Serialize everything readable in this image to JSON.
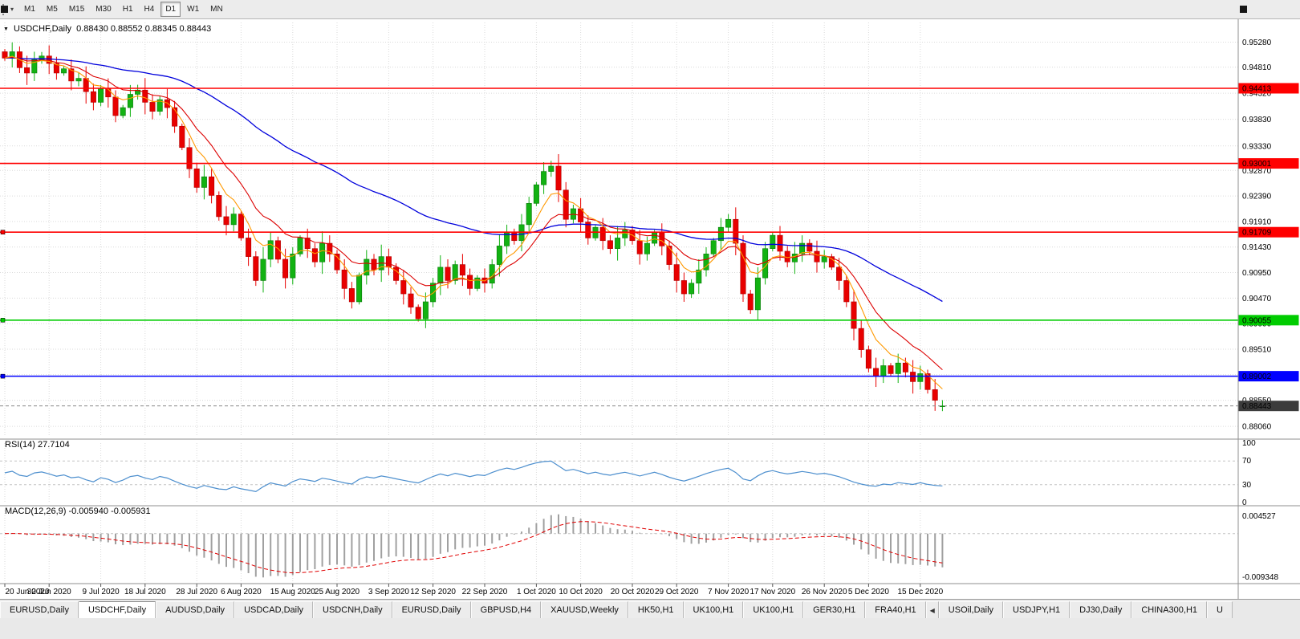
{
  "toolbar": {
    "dropdown_icon": "▾",
    "timeframes": [
      {
        "label": "M1",
        "active": false
      },
      {
        "label": "M5",
        "active": false
      },
      {
        "label": "M15",
        "active": false
      },
      {
        "label": "M30",
        "active": false
      },
      {
        "label": "H1",
        "active": false
      },
      {
        "label": "H4",
        "active": false
      },
      {
        "label": "D1",
        "active": true
      },
      {
        "label": "W1",
        "active": false
      },
      {
        "label": "MN",
        "active": false
      }
    ]
  },
  "chart": {
    "collapse_icon": "▼",
    "symbol_title": "USDCHF,Daily",
    "ohlc_text": "0.88430 0.88552 0.88345 0.88443"
  },
  "rsi_panel": {
    "label": "RSI(14) 27.7104",
    "scale": [
      {
        "label": "100",
        "value": 100
      },
      {
        "label": "70",
        "value": 70
      },
      {
        "label": "30",
        "value": 30
      },
      {
        "label": "0",
        "value": 0
      }
    ]
  },
  "macd_panel": {
    "label": "MACD(12,26,9) -0.005940 -0.005931",
    "scale_top": "0.004527",
    "scale_bottom": "-0.009348"
  },
  "chart_data": {
    "type": "candlestick",
    "symbol": "USDCHF",
    "period": "Daily",
    "last_ohlc": {
      "open": 0.8843,
      "high": 0.88552,
      "low": 0.88345,
      "close": 0.88443
    },
    "current_price": {
      "value": 0.88443,
      "label": "0.88443"
    },
    "price_axis": {
      "min": 0.8788,
      "max": 0.9565,
      "labels": [
        "0.95280",
        "0.94810",
        "0.94320",
        "0.93830",
        "0.93330",
        "0.92870",
        "0.92390",
        "0.91910",
        "0.91430",
        "0.90950",
        "0.90470",
        "0.89990",
        "0.89510",
        "0.89030",
        "0.88550",
        "0.88060"
      ]
    },
    "hlines": [
      {
        "price": 0.94413,
        "label": "0.94413",
        "color": "#ff0000",
        "handle": false
      },
      {
        "price": 0.93001,
        "label": "0.93001",
        "color": "#ff0000",
        "handle": false
      },
      {
        "price": 0.91709,
        "label": "0.91709",
        "color": "#ff0000",
        "handle": true
      },
      {
        "price": 0.90055,
        "label": "0.90055",
        "color": "#00cc00",
        "handle": true
      },
      {
        "price": 0.89002,
        "label": "0.89002",
        "color": "#0000ff",
        "handle": true
      }
    ],
    "moving_averages": [
      {
        "period": 50,
        "color": "#0000dc"
      },
      {
        "period": 12,
        "color": "#dc0000"
      },
      {
        "period": 6,
        "color": "#ff9900"
      }
    ],
    "rsi": {
      "period": 14,
      "value": 27.7104
    },
    "macd": {
      "fast": 12,
      "slow": 26,
      "signal": 9,
      "value": -0.00594,
      "signal_value": -0.005931
    },
    "closes": [
      0.9498,
      0.951,
      0.948,
      0.947,
      0.9495,
      0.9502,
      0.9488,
      0.947,
      0.9478,
      0.9455,
      0.946,
      0.9435,
      0.9415,
      0.944,
      0.9425,
      0.939,
      0.9405,
      0.943,
      0.9438,
      0.9415,
      0.9398,
      0.942,
      0.9405,
      0.937,
      0.933,
      0.929,
      0.9255,
      0.9275,
      0.924,
      0.92,
      0.9185,
      0.9205,
      0.916,
      0.9125,
      0.908,
      0.912,
      0.9155,
      0.912,
      0.9085,
      0.913,
      0.916,
      0.914,
      0.9115,
      0.915,
      0.913,
      0.91,
      0.9065,
      0.904,
      0.909,
      0.912,
      0.91,
      0.9125,
      0.9105,
      0.908,
      0.9055,
      0.903,
      0.9008,
      0.904,
      0.9075,
      0.9105,
      0.908,
      0.911,
      0.909,
      0.9065,
      0.9085,
      0.9075,
      0.911,
      0.9145,
      0.917,
      0.9155,
      0.9185,
      0.9225,
      0.926,
      0.9285,
      0.9295,
      0.925,
      0.9195,
      0.9215,
      0.919,
      0.916,
      0.918,
      0.9155,
      0.914,
      0.916,
      0.9175,
      0.9155,
      0.913,
      0.915,
      0.917,
      0.9145,
      0.911,
      0.908,
      0.9055,
      0.9075,
      0.91,
      0.913,
      0.9155,
      0.918,
      0.9195,
      0.915,
      0.9055,
      0.9025,
      0.9085,
      0.914,
      0.9165,
      0.9135,
      0.9115,
      0.913,
      0.915,
      0.9135,
      0.9115,
      0.9125,
      0.9105,
      0.908,
      0.904,
      0.899,
      0.895,
      0.8915,
      0.89,
      0.892,
      0.8905,
      0.8925,
      0.8908,
      0.889,
      0.8905,
      0.8875,
      0.8855,
      0.88443
    ],
    "date_ticks": [
      {
        "label": "20 Jun 2020",
        "bar": 0
      },
      {
        "label": "30 Jun 2020",
        "bar": 6
      },
      {
        "label": "9 Jul 2020",
        "bar": 13
      },
      {
        "label": "18 Jul 2020",
        "bar": 19
      },
      {
        "label": "28 Jul 2020",
        "bar": 26
      },
      {
        "label": "6 Aug 2020",
        "bar": 32
      },
      {
        "label": "15 Aug 2020",
        "bar": 39
      },
      {
        "label": "25 Aug 2020",
        "bar": 45
      },
      {
        "label": "3 Sep 2020",
        "bar": 52
      },
      {
        "label": "12 Sep 2020",
        "bar": 58
      },
      {
        "label": "22 Sep 2020",
        "bar": 65
      },
      {
        "label": "1 Oct 2020",
        "bar": 72
      },
      {
        "label": "10 Oct 2020",
        "bar": 78
      },
      {
        "label": "20 Oct 2020",
        "bar": 85
      },
      {
        "label": "29 Oct 2020",
        "bar": 91
      },
      {
        "label": "7 Nov 2020",
        "bar": 98
      },
      {
        "label": "17 Nov 2020",
        "bar": 104
      },
      {
        "label": "26 Nov 2020",
        "bar": 111
      },
      {
        "label": "5 Dec 2020",
        "bar": 117
      },
      {
        "label": "15 Dec 2020",
        "bar": 124
      }
    ]
  },
  "tabs": [
    {
      "label": "EURUSD,Daily",
      "active": false
    },
    {
      "label": "USDCHF,Daily",
      "active": true
    },
    {
      "label": "AUDUSD,Daily",
      "active": false
    },
    {
      "label": "USDCAD,Daily",
      "active": false
    },
    {
      "label": "USDCNH,Daily",
      "active": false
    },
    {
      "label": "EURUSD,Daily",
      "active": false
    },
    {
      "label": "GBPUSD,H4",
      "active": false
    },
    {
      "label": "XAUUSD,Weekly",
      "active": false
    },
    {
      "label": "HK50,H1",
      "active": false
    },
    {
      "label": "UK100,H1",
      "active": false
    },
    {
      "label": "UK100,H1",
      "active": false
    },
    {
      "label": "GER30,H1",
      "active": false
    },
    {
      "label": "FRA40,H1",
      "active": false
    },
    {
      "label": "◀",
      "active": false,
      "icon": true
    },
    {
      "label": "USOil,Daily",
      "active": false
    },
    {
      "label": "USDJPY,H1",
      "active": false
    },
    {
      "label": "DJ30,Daily",
      "active": false
    },
    {
      "label": "CHINA300,H1",
      "active": false
    },
    {
      "label": "U",
      "active": false
    }
  ]
}
